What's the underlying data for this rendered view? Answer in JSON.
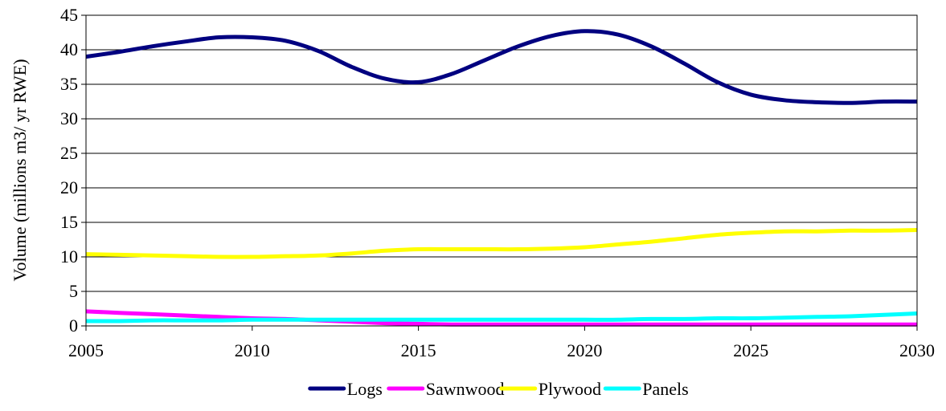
{
  "chart_data": {
    "type": "line",
    "title": "",
    "xlabel": "",
    "ylabel": "Volume (millions m3/ yr RWE)",
    "xlim": [
      2005,
      2030
    ],
    "ylim": [
      0,
      45
    ],
    "x_ticks": [
      2005,
      2010,
      2015,
      2020,
      2025,
      2030
    ],
    "y_ticks": [
      0,
      5,
      10,
      15,
      20,
      25,
      30,
      35,
      40,
      45
    ],
    "grid": "horizontal",
    "legend_position": "bottom",
    "smoothed": true,
    "x": [
      2005,
      2006,
      2007,
      2008,
      2009,
      2010,
      2011,
      2012,
      2013,
      2014,
      2015,
      2016,
      2017,
      2018,
      2019,
      2020,
      2021,
      2022,
      2023,
      2024,
      2025,
      2026,
      2027,
      2028,
      2029,
      2030
    ],
    "series": [
      {
        "name": "Logs",
        "color": "#000080",
        "values": [
          39.0,
          39.7,
          40.5,
          41.2,
          41.8,
          41.8,
          41.3,
          39.8,
          37.5,
          35.8,
          35.3,
          36.5,
          38.5,
          40.5,
          42.0,
          42.7,
          42.2,
          40.5,
          38.0,
          35.3,
          33.5,
          32.7,
          32.4,
          32.3,
          32.5,
          32.5
        ]
      },
      {
        "name": "Sawnwood",
        "color": "#FF00FF",
        "values": [
          2.1,
          1.9,
          1.7,
          1.5,
          1.3,
          1.1,
          1.0,
          0.8,
          0.6,
          0.4,
          0.3,
          0.2,
          0.2,
          0.2,
          0.2,
          0.2,
          0.2,
          0.2,
          0.2,
          0.2,
          0.2,
          0.2,
          0.2,
          0.2,
          0.2,
          0.2
        ]
      },
      {
        "name": "Plywood",
        "color": "#FFFF00",
        "values": [
          10.4,
          10.3,
          10.2,
          10.1,
          10.0,
          10.0,
          10.1,
          10.2,
          10.5,
          10.9,
          11.1,
          11.1,
          11.1,
          11.1,
          11.2,
          11.4,
          11.8,
          12.2,
          12.7,
          13.2,
          13.5,
          13.7,
          13.7,
          13.8,
          13.8,
          13.9
        ]
      },
      {
        "name": "Panels",
        "color": "#00FFFF",
        "values": [
          0.7,
          0.7,
          0.8,
          0.8,
          0.8,
          0.9,
          0.9,
          0.9,
          0.9,
          0.9,
          0.9,
          0.9,
          0.9,
          0.9,
          0.9,
          0.9,
          0.9,
          1.0,
          1.0,
          1.1,
          1.1,
          1.2,
          1.3,
          1.4,
          1.6,
          1.8
        ]
      }
    ]
  }
}
